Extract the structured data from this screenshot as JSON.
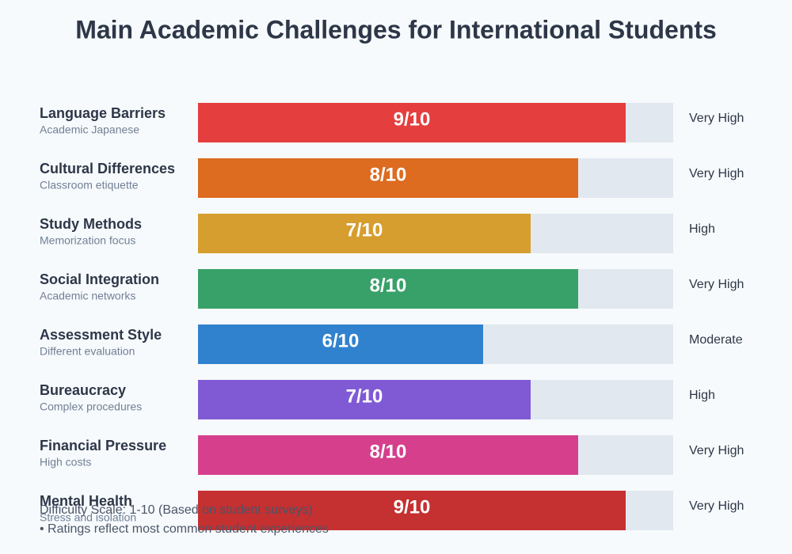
{
  "chart_data": {
    "type": "bar",
    "title": "Main Academic Challenges for International Students",
    "categories": [
      "Language Barriers",
      "Cultural Differences",
      "Study Methods",
      "Social Integration",
      "Assessment Style",
      "Bureaucracy",
      "Financial Pressure",
      "Mental Health"
    ],
    "subtitles": [
      "Academic Japanese",
      "Classroom etiquette",
      "Memorization focus",
      "Academic networks",
      "Different evaluation",
      "Complex procedures",
      "High costs",
      "Stress and isolation"
    ],
    "values": [
      9,
      8,
      7,
      8,
      6,
      7,
      8,
      9
    ],
    "value_labels": [
      "9/10",
      "8/10",
      "7/10",
      "8/10",
      "6/10",
      "7/10",
      "8/10",
      "9/10"
    ],
    "levels": [
      "Very High",
      "Very High",
      "High",
      "Very High",
      "Moderate",
      "High",
      "Very High",
      "Very High"
    ],
    "colors": [
      "#e53e3e",
      "#dd6b20",
      "#d69e2e",
      "#38a169",
      "#3182ce",
      "#805ad5",
      "#d53f8c",
      "#c53030"
    ],
    "xlim": [
      0,
      10
    ],
    "notes": [
      "Difficulty Scale: 1-10 (Based on student surveys)",
      "• Ratings reflect most common student experiences"
    ]
  }
}
